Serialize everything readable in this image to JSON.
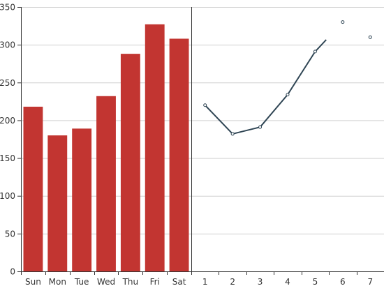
{
  "chart_data": [
    {
      "type": "bar",
      "categories": [
        "Sun",
        "Mon",
        "Tue",
        "Wed",
        "Thu",
        "Fri",
        "Sat"
      ],
      "values": [
        218,
        180,
        189,
        232,
        288,
        327,
        308
      ],
      "ylim": [
        0,
        350
      ],
      "yticks": [
        "0",
        "50",
        "100",
        "150",
        "200",
        "250",
        "300",
        "350"
      ],
      "grid": true,
      "color": "#c23531"
    },
    {
      "type": "line",
      "categories": [
        "1",
        "2",
        "3",
        "4",
        "5",
        "6",
        "7"
      ],
      "values": [
        220,
        182,
        191,
        234,
        291,
        330,
        310
      ],
      "line_drawn_through_index": 4.4,
      "ylim": [
        0,
        350
      ],
      "color": "#2f4554"
    }
  ]
}
